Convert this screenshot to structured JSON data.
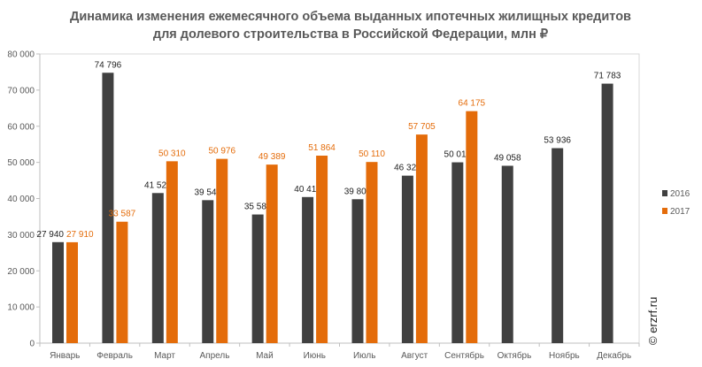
{
  "chart_data": {
    "type": "bar",
    "title_lines": [
      "Динамика изменения ежемесячного объема выданных ипотечных жилищных кредитов",
      "для долевого строительства  в Российской  Федерации, млн ₽"
    ],
    "categories": [
      "Январь",
      "Февраль",
      "Март",
      "Апрель",
      "Май",
      "Июнь",
      "Июль",
      "Август",
      "Сентябрь",
      "Октябрь",
      "Ноябрь",
      "Декабрь"
    ],
    "series": [
      {
        "name": "2016",
        "color": "#404040",
        "values": [
          27940,
          74796,
          41521,
          39548,
          35587,
          40414,
          39809,
          46327,
          50019,
          49058,
          53936,
          71783
        ],
        "labels": [
          "27 940",
          "74 796",
          "41 521",
          "39 548",
          "35 587",
          "40 414",
          "39 809",
          "46 327",
          "50 019",
          "49 058",
          "53 936",
          "71 783"
        ]
      },
      {
        "name": "2017",
        "color": "#e46c0a",
        "values": [
          27910,
          33587,
          50310,
          50976,
          49389,
          51864,
          50110,
          57705,
          64175,
          null,
          null,
          null
        ],
        "labels": [
          "27 910",
          "33 587",
          "50 310",
          "50 976",
          "49 389",
          "51 864",
          "50 110",
          "57 705",
          "64 175",
          null,
          null,
          null
        ]
      }
    ],
    "ylim": [
      0,
      80000
    ],
    "yticks": [
      0,
      10000,
      20000,
      30000,
      40000,
      50000,
      60000,
      70000,
      80000
    ],
    "ytick_labels": [
      "0",
      "10 000",
      "20 000",
      "30 000",
      "40 000",
      "50 000",
      "60 000",
      "70 000",
      "80 000"
    ],
    "legend_position": "right",
    "grid": false
  },
  "watermark": "© erzrf.ru"
}
